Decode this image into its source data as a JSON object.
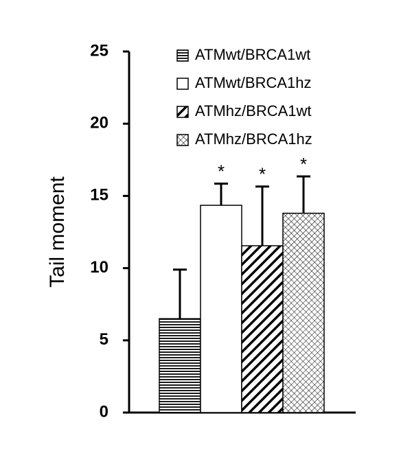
{
  "chart_data": {
    "type": "bar",
    "ylabel": "Tail moment",
    "ylim": [
      0,
      25
    ],
    "yticks": [
      0,
      5,
      10,
      15,
      20,
      25
    ],
    "color": "#000000",
    "legend": "upper right",
    "series": [
      {
        "name": "ATMwt/BRCA1wt",
        "pattern": "horizontal",
        "values": [
          6.5
        ],
        "errors": [
          3.4
        ],
        "annotation": null
      },
      {
        "name": "ATMwt/BRCA1hz",
        "pattern": "none",
        "values": [
          14.35
        ],
        "errors": [
          1.5
        ],
        "annotation": "*"
      },
      {
        "name": "ATMhz/BRCA1wt",
        "pattern": "diagonal",
        "values": [
          11.55
        ],
        "errors": [
          4.1
        ],
        "annotation": "*"
      },
      {
        "name": "ATMhz/BRCA1hz",
        "pattern": "crosshatch",
        "values": [
          13.8
        ],
        "errors": [
          2.55
        ],
        "annotation": "*"
      }
    ]
  }
}
